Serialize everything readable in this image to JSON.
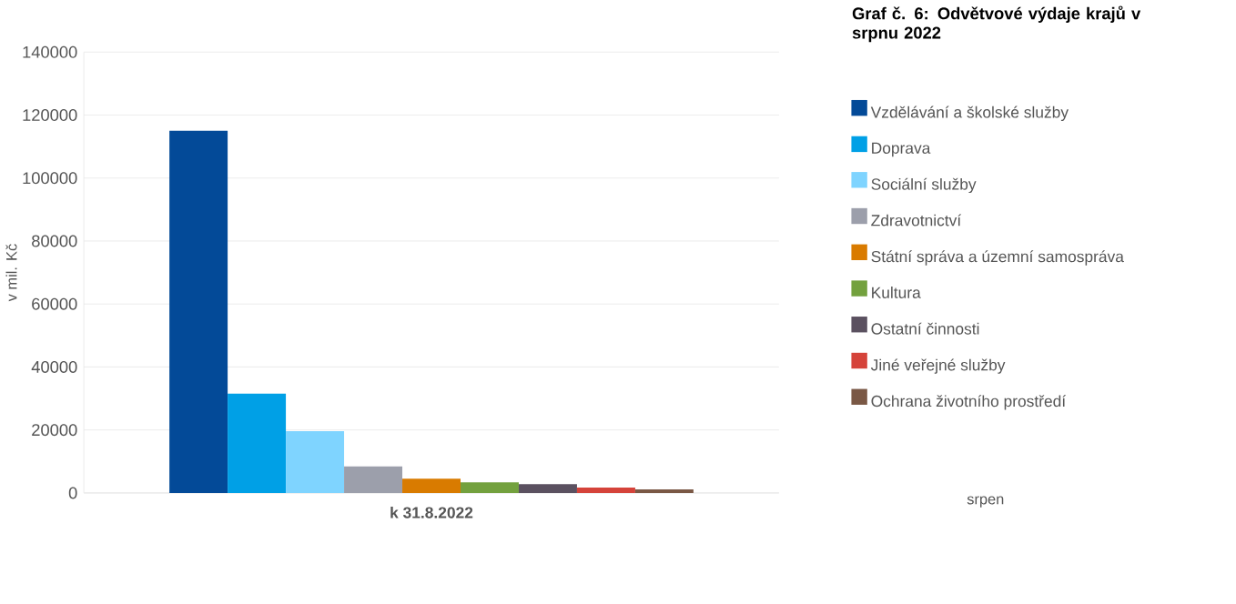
{
  "chart_data": {
    "type": "bar",
    "title": "Graf č. 6: Odvětvové výdaje krajů v srpnu 2022",
    "ylabel": "v mil. Kč",
    "categories": [
      "k 31.8.2022"
    ],
    "series": [
      {
        "name": "Vzdělávání a školské služby",
        "color": "#034a98",
        "values": [
          115000
        ]
      },
      {
        "name": "Doprava",
        "color": "#00a0e6",
        "values": [
          31500
        ]
      },
      {
        "name": "Sociální služby",
        "color": "#7fd4ff",
        "values": [
          19600
        ]
      },
      {
        "name": "Zdravotnictví",
        "color": "#9c9fab",
        "values": [
          8400
        ]
      },
      {
        "name": "Státní správa a územní samospráva",
        "color": "#d97b00",
        "values": [
          4500
        ]
      },
      {
        "name": "Kultura",
        "color": "#73a13e",
        "values": [
          3400
        ]
      },
      {
        "name": "Ostatní činnosti",
        "color": "#5b5160",
        "values": [
          2800
        ]
      },
      {
        "name": "Jiné veřejné služby",
        "color": "#d5433a",
        "values": [
          1700
        ]
      },
      {
        "name": "Ochrana životního prostředí",
        "color": "#7a5845",
        "values": [
          1100
        ]
      }
    ],
    "ylim": [
      0,
      140000
    ],
    "yticks": [
      0,
      20000,
      40000,
      60000,
      80000,
      100000,
      120000,
      140000
    ],
    "grid": "y",
    "legend": "right",
    "annotations": [
      "srpen"
    ]
  }
}
